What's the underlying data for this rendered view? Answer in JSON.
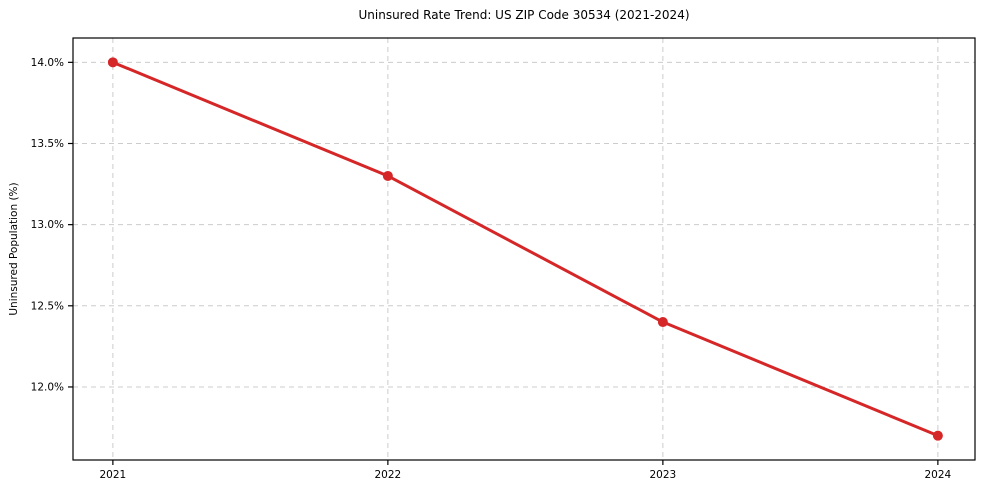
{
  "chart_data": {
    "type": "line",
    "title": "Uninsured Rate Trend: US ZIP Code 30534 (2021-2024)",
    "xlabel": "",
    "ylabel": "Uninsured Population (%)",
    "x": [
      2021,
      2022,
      2023,
      2024
    ],
    "values": [
      14.0,
      13.3,
      12.4,
      11.7
    ],
    "xticks": [
      2021,
      2022,
      2023,
      2024
    ],
    "xtick_labels": [
      "2021",
      "2022",
      "2023",
      "2024"
    ],
    "yticks": [
      14.0,
      13.5,
      13.0,
      12.5,
      12.0
    ],
    "ytick_labels": [
      "14.0%",
      "13.5%",
      "13.0%",
      "12.5%",
      "12.0%"
    ],
    "xlim": [
      2020.855,
      2024.135
    ],
    "ylim": [
      11.55,
      14.15
    ],
    "grid": "dashed, both axes",
    "legend": "none",
    "line_color": "#d62728",
    "marker_color": "#d62728",
    "grid_color": "#cccccc",
    "spine_color": "#000000",
    "text_color": "#000000"
  }
}
